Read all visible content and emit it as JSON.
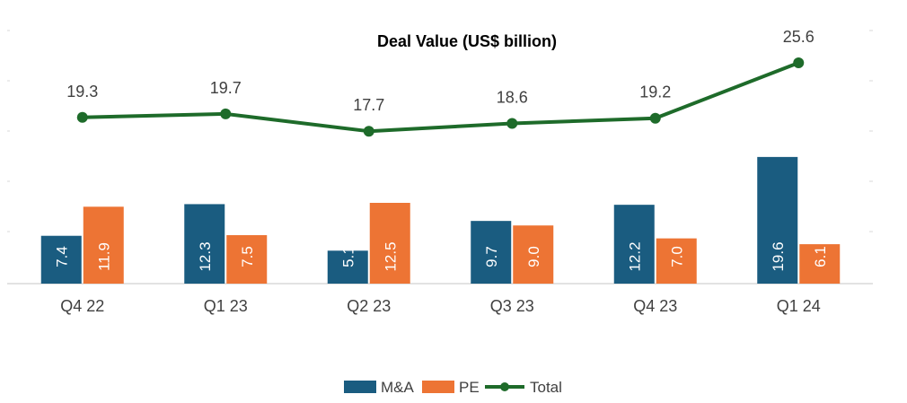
{
  "chart_data": {
    "type": "bar",
    "title": "Deal Value (US$ billion)",
    "categories": [
      "Q4 22",
      "Q1 23",
      "Q2 23",
      "Q3 23",
      "Q4 23",
      "Q1 24"
    ],
    "series": [
      {
        "name": "M&A",
        "type": "bar",
        "color": "#1a5c80",
        "values": [
          7.4,
          12.3,
          5.1,
          9.7,
          12.2,
          19.6
        ]
      },
      {
        "name": "PE",
        "type": "bar",
        "color": "#ed7434",
        "values": [
          11.9,
          7.5,
          12.5,
          9.0,
          7.0,
          6.1
        ]
      },
      {
        "name": "Total",
        "type": "line",
        "color": "#1e6b2a",
        "values": [
          19.3,
          19.7,
          17.7,
          18.6,
          19.2,
          25.6
        ]
      }
    ],
    "legend_position": "bottom"
  }
}
